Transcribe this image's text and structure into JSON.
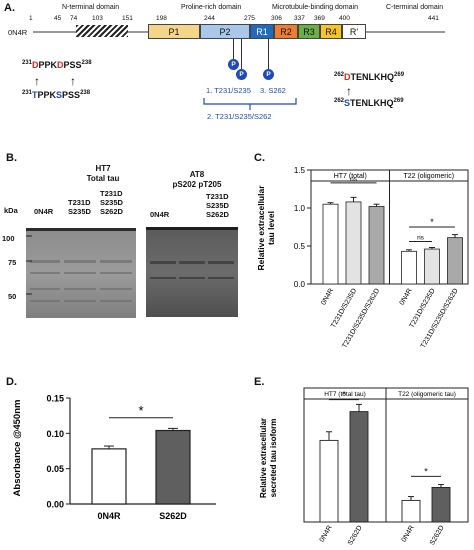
{
  "panelA": {
    "letter": "A.",
    "domains": [
      "N-terminal domain",
      "Proline-rich domain",
      "Microtubule-binding domain",
      "C-terminal domain"
    ],
    "construct": "0N4R",
    "positions": [
      "1",
      "45",
      "74",
      "103",
      "151",
      "198",
      "244",
      "275",
      "306",
      "337",
      "369",
      "400",
      "441"
    ],
    "segments": [
      {
        "label": "P1",
        "color": "#f5d58a"
      },
      {
        "label": "P2",
        "color": "#a8c7ea"
      },
      {
        "label": "R1",
        "color": "#1f6bbf"
      },
      {
        "label": "R2",
        "color": "#ee7d31"
      },
      {
        "label": "R3",
        "color": "#6ab045"
      },
      {
        "label": "R4",
        "color": "#f7c325"
      },
      {
        "label": "R'",
        "color": "#ffffff"
      }
    ],
    "phospho_symbol": "P",
    "seq1_wt": {
      "start": "231",
      "end": "238",
      "parts": [
        [
          "D",
          "red"
        ],
        [
          "PPK",
          "black"
        ],
        [
          "D",
          "red"
        ],
        [
          "PSS",
          "black"
        ]
      ]
    },
    "seq1_mut": {
      "start": "231",
      "end": "238",
      "parts": [
        [
          "T",
          "blue"
        ],
        [
          "PPK",
          "black"
        ],
        [
          "S",
          "blue"
        ],
        [
          "PSS",
          "black"
        ]
      ]
    },
    "seq2_top": {
      "start": "262",
      "end": "269",
      "parts": [
        [
          "D",
          "red"
        ],
        [
          "TENLKHQ",
          "black"
        ]
      ]
    },
    "seq2_bot": {
      "start": "262",
      "end": "269",
      "parts": [
        [
          "S",
          "blue"
        ],
        [
          "TENLKHQ",
          "black"
        ]
      ]
    },
    "arrow": "↑",
    "label1": "1. T231/S235",
    "label3": "3. S262",
    "label2": "2. T231/S235/S262"
  },
  "panelB": {
    "letter": "B.",
    "blot1": {
      "title": "HT7",
      "subtitle": "Total tau",
      "lanes": [
        "0N4R",
        "T231D\nS235D",
        "T231D\nS235D\nS262D"
      ]
    },
    "blot2": {
      "title": "AT8",
      "subtitle": "pS202 pT205",
      "lanes": [
        "0N4R",
        "T231D\nS235D\nS262D"
      ]
    },
    "kda_label": "kDa",
    "markers": [
      "100",
      "75",
      "50"
    ]
  },
  "panelC": {
    "letter": "C.",
    "chart_data": {
      "type": "bar",
      "ylabel": "Relative extracellular\ntau level",
      "ylim": [
        0,
        1.5
      ],
      "yticks": [
        "0.0",
        "0.5",
        "1.0",
        "1.5"
      ],
      "groups": [
        {
          "name": "HT7 (total)",
          "categories": [
            "0N4R",
            "T231D/S235D",
            "T231D/S235D/S262D"
          ],
          "values": [
            1.05,
            1.08,
            1.02
          ],
          "errors": [
            0.02,
            0.06,
            0.03
          ]
        },
        {
          "name": "T22 (oligomeric)",
          "categories": [
            "0N4R",
            "T231D/S235D",
            "T231D/S235D/S262D"
          ],
          "values": [
            0.43,
            0.46,
            0.61
          ],
          "errors": [
            0.02,
            0.02,
            0.04
          ]
        }
      ],
      "annotations": [
        "ns",
        "ns",
        "*"
      ]
    }
  },
  "panelD": {
    "letter": "D.",
    "chart_data": {
      "type": "bar",
      "ylabel": "Absorbance @450nm",
      "ylim": [
        0,
        0.15
      ],
      "yticks": [
        "0.00",
        "0.05",
        "0.10",
        "0.15"
      ],
      "categories": [
        "0N4R",
        "S262D"
      ],
      "values": [
        0.078,
        0.104
      ],
      "errors": [
        0.004,
        0.003
      ],
      "annotations": [
        "*"
      ]
    }
  },
  "panelE": {
    "letter": "E.",
    "chart_data": {
      "type": "bar",
      "ylabel": "Relative extracellular\nsecreted tau isoform",
      "ylim": [
        0,
        2.5
      ],
      "groups": [
        {
          "name": "HT7 (total tau)",
          "categories": [
            "0N4R",
            "S262D"
          ],
          "values": [
            1.7,
            2.3
          ],
          "errors": [
            0.18,
            0.15
          ]
        },
        {
          "name": "T22 (oligomeric tau)",
          "categories": [
            "0N4R",
            "S262D"
          ],
          "values": [
            0.45,
            0.72
          ],
          "errors": [
            0.08,
            0.06
          ]
        }
      ],
      "annotations": [
        "*",
        "*"
      ]
    }
  }
}
